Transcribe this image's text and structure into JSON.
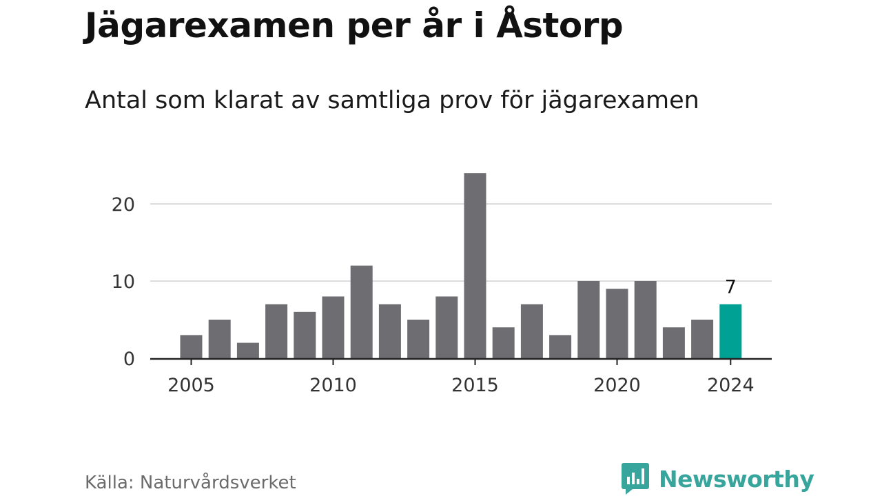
{
  "title": "Jägarexamen per år i Åstorp",
  "subtitle": "Antal som klarat av samtliga prov för jägarexamen",
  "source": "Källa: Naturvårdsverket",
  "brand": {
    "name": "Newsworthy",
    "icon": "newsworthy-logo-icon",
    "color": "#37a59b"
  },
  "colors": {
    "bar": "#6e6d72",
    "highlight": "#00a195",
    "grid": "#dddddd",
    "axis": "#222222"
  },
  "chart_data": {
    "type": "bar",
    "title": "Jägarexamen per år i Åstorp",
    "subtitle": "Antal som klarat av samtliga prov för jägarexamen",
    "xlabel": "",
    "ylabel": "",
    "categories": [
      "2005",
      "2006",
      "2007",
      "2008",
      "2009",
      "2010",
      "2011",
      "2012",
      "2013",
      "2014",
      "2015",
      "2016",
      "2017",
      "2018",
      "2019",
      "2020",
      "2021",
      "2022",
      "2023",
      "2024"
    ],
    "values": [
      3,
      5,
      2,
      7,
      6,
      8,
      12,
      7,
      5,
      8,
      24,
      4,
      7,
      3,
      10,
      9,
      10,
      4,
      5,
      7
    ],
    "ylim": [
      0,
      24
    ],
    "yticks": [
      0,
      10,
      20
    ],
    "xtick_labels": [
      "2005",
      "2010",
      "2015",
      "2020",
      "2024"
    ],
    "highlight_category": "2024",
    "data_labels": [
      {
        "category": "2024",
        "text": "7"
      }
    ],
    "grid": true
  }
}
